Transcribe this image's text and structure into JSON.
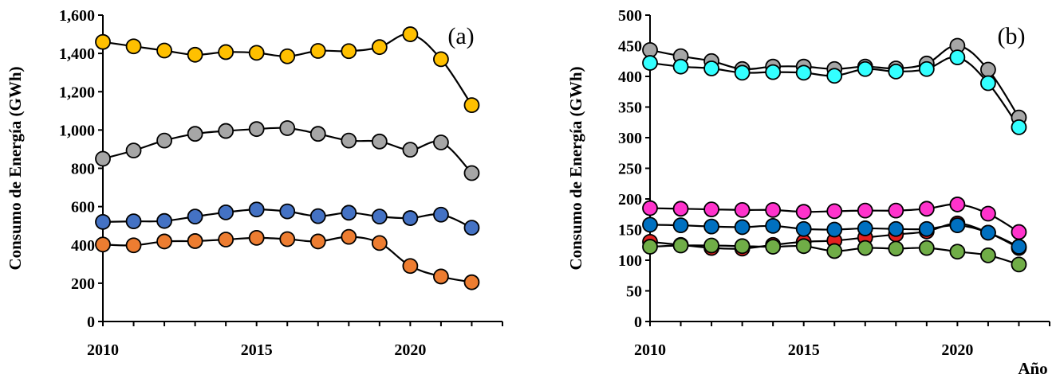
{
  "chart_data": [
    {
      "type": "line",
      "panel_label": "(a)",
      "ylabel": "Consumo de Energía (GWh)",
      "xlabel": "",
      "x": [
        2010,
        2011,
        2012,
        2013,
        2014,
        2015,
        2016,
        2017,
        2018,
        2019,
        2020,
        2021,
        2022
      ],
      "xlim": [
        2010,
        2023
      ],
      "xticks": [
        "2010",
        "2015",
        "2020"
      ],
      "xtick_values": [
        2010,
        2015,
        2020
      ],
      "ylim": [
        0,
        1600
      ],
      "yticks": [
        "0",
        "200",
        "400",
        "600",
        "800",
        "1,000",
        "1,200",
        "1,400",
        "1,600"
      ],
      "ytick_values": [
        0,
        200,
        400,
        600,
        800,
        1000,
        1200,
        1400,
        1600
      ],
      "grid": false,
      "series": [
        {
          "color": "#FFC000",
          "values": [
            1460,
            1437,
            1415,
            1393,
            1407,
            1403,
            1385,
            1413,
            1412,
            1433,
            1500,
            1370,
            1130
          ]
        },
        {
          "color": "#A6A6A6",
          "values": [
            850,
            893,
            945,
            980,
            995,
            1005,
            1010,
            980,
            945,
            940,
            897,
            935,
            775
          ]
        },
        {
          "color": "#4472C4",
          "values": [
            520,
            523,
            525,
            548,
            570,
            585,
            575,
            550,
            568,
            548,
            540,
            558,
            490
          ]
        },
        {
          "color": "#ED7D31",
          "values": [
            402,
            398,
            418,
            420,
            428,
            437,
            430,
            418,
            442,
            410,
            290,
            235,
            205
          ]
        }
      ]
    },
    {
      "type": "line",
      "panel_label": "(b)",
      "ylabel": "Consumo de Energía (GWh)",
      "xlabel": "Año",
      "x": [
        2010,
        2011,
        2012,
        2013,
        2014,
        2015,
        2016,
        2017,
        2018,
        2019,
        2020,
        2021,
        2022
      ],
      "xlim": [
        2010,
        2023
      ],
      "xticks": [
        "2010",
        "2015",
        "2020"
      ],
      "xtick_values": [
        2010,
        2015,
        2020
      ],
      "ylim": [
        0,
        500
      ],
      "yticks": [
        "0",
        "50",
        "100",
        "150",
        "200",
        "250",
        "300",
        "350",
        "400",
        "450",
        "500"
      ],
      "ytick_values": [
        0,
        50,
        100,
        150,
        200,
        250,
        300,
        350,
        400,
        450,
        500
      ],
      "grid": false,
      "series": [
        {
          "color": "#A6A6A6",
          "values": [
            443,
            433,
            425,
            412,
            416,
            416,
            412,
            416,
            413,
            421,
            450,
            411,
            333
          ]
        },
        {
          "color": "#33FFFF",
          "values": [
            422,
            416,
            413,
            406,
            407,
            406,
            401,
            412,
            408,
            412,
            431,
            389,
            317
          ]
        },
        {
          "color": "#FF33CC",
          "values": [
            185,
            184,
            183,
            182,
            182,
            179,
            180,
            181,
            181,
            184,
            191,
            176,
            146
          ]
        },
        {
          "color": "#E52020",
          "values": [
            130,
            125,
            120,
            119,
            125,
            130,
            132,
            137,
            142,
            147,
            160,
            145,
            120
          ]
        },
        {
          "color": "#0070C0",
          "values": [
            158,
            157,
            155,
            154,
            156,
            151,
            150,
            152,
            151,
            151,
            157,
            145,
            122
          ]
        },
        {
          "color": "#70AD47",
          "values": [
            122,
            124,
            124,
            123,
            122,
            123,
            115,
            120,
            119,
            120,
            114,
            108,
            93
          ]
        }
      ]
    }
  ]
}
